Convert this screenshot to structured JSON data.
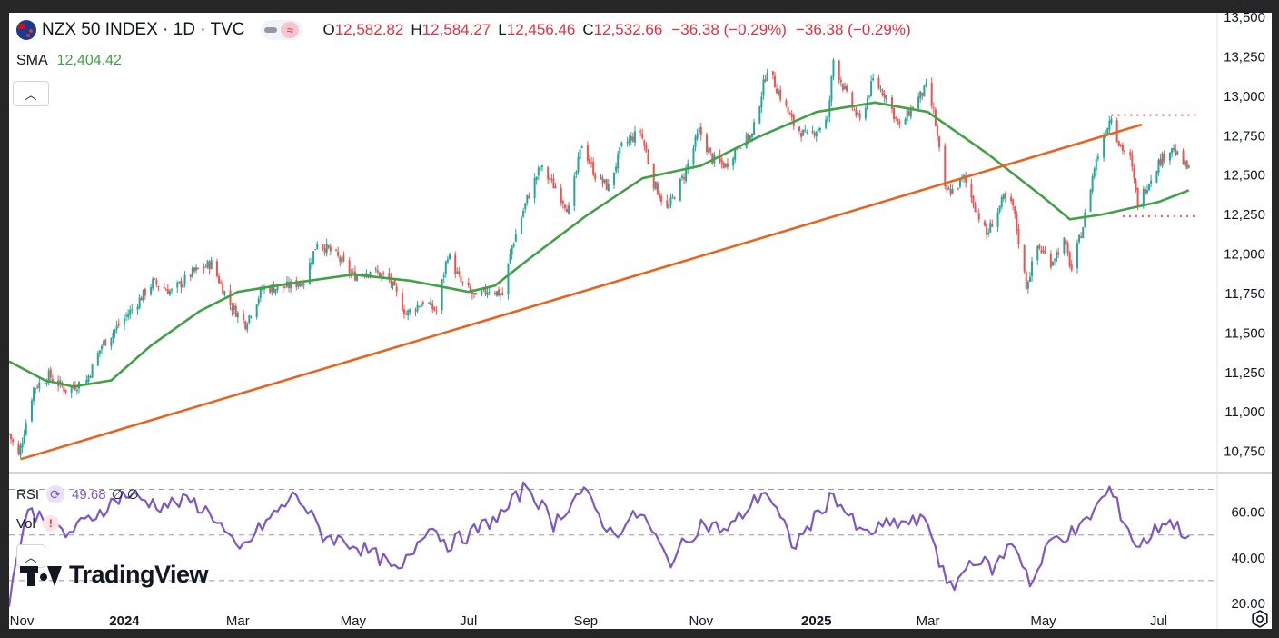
{
  "header": {
    "symbol": "NZX 50 INDEX · 1D · TVC",
    "open_label": "O",
    "open": "12,582.82",
    "high_label": "H",
    "high": "12,584.27",
    "low_label": "L",
    "low": "12,456.46",
    "close_label": "C",
    "close": "12,532.66",
    "change": "−36.38 (−0.29%)",
    "change2": "−36.38 (−0.29%)",
    "wave_glyph": "≈"
  },
  "sma": {
    "label": "SMA",
    "value": "12,404.42"
  },
  "rsi": {
    "label": "RSI",
    "value": "49.68",
    "extra": "∅ ∅",
    "icon_glyph": "⟳"
  },
  "vol": {
    "label": "Vol",
    "icon_glyph": "!"
  },
  "branding": {
    "name": "TradingView"
  },
  "buttons": {
    "collapse_glyph": "︿"
  },
  "colors": {
    "up": "#26a69a",
    "down": "#ef5350",
    "sma": "#43a047",
    "trendline": "#e8641e",
    "levels": "#ef5350",
    "rsi": "#7e57c2",
    "grid_dash": "#9598a1",
    "ohlc_value": "#e0313f"
  },
  "icons": [
    "new-zealand-flag-icon",
    "eye-off-icon",
    "wave-icon",
    "chevron-up-icon",
    "rsi-refresh-icon",
    "alert-icon",
    "settings-gear-icon"
  ],
  "chart_data": [
    {
      "type": "candlestick",
      "title": "NZX 50 INDEX · 1D · TVC",
      "ylim": [
        10650,
        13500
      ],
      "y_ticks": [
        10750,
        11000,
        11250,
        11500,
        11750,
        12000,
        12250,
        12500,
        12750,
        13000,
        13250,
        13500
      ],
      "y_tick_labels": [
        "10,750",
        "11,000",
        "11,250",
        "11,500",
        "11,750",
        "12,000",
        "12,250",
        "12,500",
        "12,750",
        "13,000",
        "13,250",
        "13,500"
      ],
      "x_ticks": [
        "Nov",
        "2024",
        "Mar",
        "May",
        "Jul",
        "Sep",
        "Nov",
        "2025",
        "Mar",
        "May",
        "Jul"
      ],
      "x_tick_dates": [
        "2023-11-01",
        "2024-01-01",
        "2024-03-01",
        "2024-05-01",
        "2024-07-01",
        "2024-09-01",
        "2024-11-01",
        "2025-01-01",
        "2025-03-01",
        "2025-05-01",
        "2025-07-01"
      ],
      "xlim": [
        "2023-11-01",
        "2025-08-01"
      ],
      "close_path": [
        {
          "x": "2023-11-01",
          "y": 10860
        },
        {
          "x": "2023-11-06",
          "y": 10720
        },
        {
          "x": "2023-11-14",
          "y": 11150
        },
        {
          "x": "2023-11-22",
          "y": 11230
        },
        {
          "x": "2023-12-01",
          "y": 11140
        },
        {
          "x": "2023-12-12",
          "y": 11200
        },
        {
          "x": "2023-12-20",
          "y": 11420
        },
        {
          "x": "2024-01-05",
          "y": 11650
        },
        {
          "x": "2024-01-16",
          "y": 11820
        },
        {
          "x": "2024-01-26",
          "y": 11760
        },
        {
          "x": "2024-02-06",
          "y": 11880
        },
        {
          "x": "2024-02-16",
          "y": 11940
        },
        {
          "x": "2024-02-26",
          "y": 11680
        },
        {
          "x": "2024-03-05",
          "y": 11560
        },
        {
          "x": "2024-03-14",
          "y": 11780
        },
        {
          "x": "2024-03-26",
          "y": 11790
        },
        {
          "x": "2024-04-05",
          "y": 11830
        },
        {
          "x": "2024-04-12",
          "y": 12080
        },
        {
          "x": "2024-04-22",
          "y": 11990
        },
        {
          "x": "2024-05-01",
          "y": 11860
        },
        {
          "x": "2024-05-10",
          "y": 11900
        },
        {
          "x": "2024-05-20",
          "y": 11840
        },
        {
          "x": "2024-05-29",
          "y": 11620
        },
        {
          "x": "2024-06-07",
          "y": 11700
        },
        {
          "x": "2024-06-14",
          "y": 11640
        },
        {
          "x": "2024-06-20",
          "y": 12000
        },
        {
          "x": "2024-06-27",
          "y": 11820
        },
        {
          "x": "2024-07-05",
          "y": 11720
        },
        {
          "x": "2024-07-12",
          "y": 11780
        },
        {
          "x": "2024-07-19",
          "y": 11740
        },
        {
          "x": "2024-07-24",
          "y": 12050
        },
        {
          "x": "2024-08-01",
          "y": 12350
        },
        {
          "x": "2024-08-08",
          "y": 12550
        },
        {
          "x": "2024-08-16",
          "y": 12420
        },
        {
          "x": "2024-08-23",
          "y": 12280
        },
        {
          "x": "2024-08-30",
          "y": 12700
        },
        {
          "x": "2024-09-06",
          "y": 12500
        },
        {
          "x": "2024-09-13",
          "y": 12420
        },
        {
          "x": "2024-09-20",
          "y": 12680
        },
        {
          "x": "2024-09-30",
          "y": 12780
        },
        {
          "x": "2024-10-07",
          "y": 12450
        },
        {
          "x": "2024-10-14",
          "y": 12280
        },
        {
          "x": "2024-10-23",
          "y": 12500
        },
        {
          "x": "2024-10-31",
          "y": 12780
        },
        {
          "x": "2024-11-07",
          "y": 12600
        },
        {
          "x": "2024-11-14",
          "y": 12560
        },
        {
          "x": "2024-11-21",
          "y": 12700
        },
        {
          "x": "2024-11-28",
          "y": 12750
        },
        {
          "x": "2024-12-06",
          "y": 13180
        },
        {
          "x": "2024-12-13",
          "y": 13000
        },
        {
          "x": "2024-12-20",
          "y": 12820
        },
        {
          "x": "2024-12-27",
          "y": 12740
        },
        {
          "x": "2025-01-07",
          "y": 12850
        },
        {
          "x": "2025-01-10",
          "y": 13230
        },
        {
          "x": "2025-01-17",
          "y": 13000
        },
        {
          "x": "2025-01-24",
          "y": 12840
        },
        {
          "x": "2025-01-31",
          "y": 13100
        },
        {
          "x": "2025-02-07",
          "y": 13000
        },
        {
          "x": "2025-02-14",
          "y": 12800
        },
        {
          "x": "2025-02-21",
          "y": 12940
        },
        {
          "x": "2025-02-28",
          "y": 13050
        },
        {
          "x": "2025-03-04",
          "y": 12900
        },
        {
          "x": "2025-03-10",
          "y": 12400
        },
        {
          "x": "2025-03-14",
          "y": 12400
        },
        {
          "x": "2025-03-20",
          "y": 12480
        },
        {
          "x": "2025-03-26",
          "y": 12300
        },
        {
          "x": "2025-04-01",
          "y": 12120
        },
        {
          "x": "2025-04-04",
          "y": 12200
        },
        {
          "x": "2025-04-10",
          "y": 12350
        },
        {
          "x": "2025-04-15",
          "y": 12300
        },
        {
          "x": "2025-04-22",
          "y": 11800
        },
        {
          "x": "2025-04-28",
          "y": 12050
        },
        {
          "x": "2025-05-05",
          "y": 11950
        },
        {
          "x": "2025-05-12",
          "y": 12080
        },
        {
          "x": "2025-05-16",
          "y": 11900
        },
        {
          "x": "2025-05-22",
          "y": 12180
        },
        {
          "x": "2025-05-28",
          "y": 12550
        },
        {
          "x": "2025-06-02",
          "y": 12750
        },
        {
          "x": "2025-06-06",
          "y": 12880
        },
        {
          "x": "2025-06-10",
          "y": 12700
        },
        {
          "x": "2025-06-16",
          "y": 12600
        },
        {
          "x": "2025-06-20",
          "y": 12320
        },
        {
          "x": "2025-06-25",
          "y": 12440
        },
        {
          "x": "2025-07-01",
          "y": 12580
        },
        {
          "x": "2025-07-08",
          "y": 12680
        },
        {
          "x": "2025-07-12",
          "y": 12600
        },
        {
          "x": "2025-07-17",
          "y": 12532
        }
      ],
      "sma_path": [
        {
          "x": "2023-11-01",
          "y": 11320
        },
        {
          "x": "2023-11-20",
          "y": 11200
        },
        {
          "x": "2023-12-05",
          "y": 11160
        },
        {
          "x": "2023-12-25",
          "y": 11200
        },
        {
          "x": "2024-01-15",
          "y": 11420
        },
        {
          "x": "2024-02-10",
          "y": 11640
        },
        {
          "x": "2024-03-01",
          "y": 11760
        },
        {
          "x": "2024-04-01",
          "y": 11820
        },
        {
          "x": "2024-05-01",
          "y": 11870
        },
        {
          "x": "2024-06-01",
          "y": 11830
        },
        {
          "x": "2024-07-01",
          "y": 11760
        },
        {
          "x": "2024-07-15",
          "y": 11800
        },
        {
          "x": "2024-08-01",
          "y": 11960
        },
        {
          "x": "2024-09-01",
          "y": 12240
        },
        {
          "x": "2024-10-01",
          "y": 12480
        },
        {
          "x": "2024-11-01",
          "y": 12560
        },
        {
          "x": "2024-12-01",
          "y": 12740
        },
        {
          "x": "2025-01-01",
          "y": 12900
        },
        {
          "x": "2025-02-01",
          "y": 12960
        },
        {
          "x": "2025-03-01",
          "y": 12900
        },
        {
          "x": "2025-04-01",
          "y": 12640
        },
        {
          "x": "2025-05-01",
          "y": 12360
        },
        {
          "x": "2025-05-15",
          "y": 12220
        },
        {
          "x": "2025-06-01",
          "y": 12250
        },
        {
          "x": "2025-07-01",
          "y": 12330
        },
        {
          "x": "2025-07-17",
          "y": 12404
        }
      ],
      "trendline": {
        "from": {
          "x": "2023-11-07",
          "y": 10700
        },
        "to": {
          "x": "2025-06-22",
          "y": 12820
        }
      },
      "levels": [
        {
          "y": 12880,
          "from": "2025-06-06",
          "to": "2025-07-22"
        },
        {
          "y": 12240,
          "from": "2025-06-12",
          "to": "2025-07-22"
        }
      ]
    },
    {
      "type": "line",
      "title": "RSI",
      "ylim": [
        20,
        75
      ],
      "y_ticks": [
        20,
        40,
        60
      ],
      "y_tick_labels": [
        "20.00",
        "40.00",
        "60.00"
      ],
      "bands": [
        30,
        50,
        70
      ],
      "xlim": [
        "2023-11-01",
        "2025-08-01"
      ],
      "path": [
        {
          "x": "2023-11-01",
          "y": 22
        },
        {
          "x": "2023-11-10",
          "y": 60
        },
        {
          "x": "2023-11-20",
          "y": 58
        },
        {
          "x": "2023-12-01",
          "y": 50
        },
        {
          "x": "2023-12-15",
          "y": 58
        },
        {
          "x": "2024-01-01",
          "y": 68
        },
        {
          "x": "2024-01-20",
          "y": 63
        },
        {
          "x": "2024-02-05",
          "y": 65
        },
        {
          "x": "2024-02-18",
          "y": 58
        },
        {
          "x": "2024-03-01",
          "y": 42
        },
        {
          "x": "2024-03-15",
          "y": 55
        },
        {
          "x": "2024-04-01",
          "y": 68
        },
        {
          "x": "2024-04-15",
          "y": 50
        },
        {
          "x": "2024-05-01",
          "y": 46
        },
        {
          "x": "2024-05-15",
          "y": 40
        },
        {
          "x": "2024-05-25",
          "y": 33
        },
        {
          "x": "2024-06-10",
          "y": 55
        },
        {
          "x": "2024-06-20",
          "y": 46
        },
        {
          "x": "2024-07-01",
          "y": 50
        },
        {
          "x": "2024-07-20",
          "y": 60
        },
        {
          "x": "2024-08-01",
          "y": 72
        },
        {
          "x": "2024-08-15",
          "y": 55
        },
        {
          "x": "2024-08-30",
          "y": 70
        },
        {
          "x": "2024-09-15",
          "y": 50
        },
        {
          "x": "2024-09-30",
          "y": 60
        },
        {
          "x": "2024-10-15",
          "y": 38
        },
        {
          "x": "2024-11-01",
          "y": 55
        },
        {
          "x": "2024-11-15",
          "y": 52
        },
        {
          "x": "2024-12-05",
          "y": 70
        },
        {
          "x": "2024-12-20",
          "y": 45
        },
        {
          "x": "2025-01-10",
          "y": 68
        },
        {
          "x": "2025-01-25",
          "y": 50
        },
        {
          "x": "2025-02-10",
          "y": 55
        },
        {
          "x": "2025-03-01",
          "y": 56
        },
        {
          "x": "2025-03-12",
          "y": 25
        },
        {
          "x": "2025-03-25",
          "y": 40
        },
        {
          "x": "2025-04-05",
          "y": 35
        },
        {
          "x": "2025-04-15",
          "y": 48
        },
        {
          "x": "2025-04-25",
          "y": 28
        },
        {
          "x": "2025-05-05",
          "y": 48
        },
        {
          "x": "2025-05-20",
          "y": 52
        },
        {
          "x": "2025-06-05",
          "y": 70
        },
        {
          "x": "2025-06-20",
          "y": 44
        },
        {
          "x": "2025-07-05",
          "y": 57
        },
        {
          "x": "2025-07-17",
          "y": 49.68
        }
      ]
    }
  ]
}
